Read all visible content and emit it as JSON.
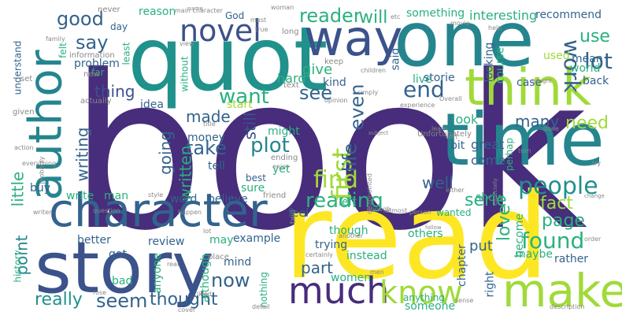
{
  "palette": {
    "purple": "#472d7b",
    "indigo": "#3b528b",
    "slate": "#33638d",
    "teal": "#25858e",
    "green": "#21918c",
    "sea": "#2ab07f",
    "lime": "#5ec962",
    "yellowgreen": "#a0da39",
    "yellow": "#fde725",
    "gray": "#888888"
  },
  "words": [
    {
      "text": "book",
      "color": "#472d7b"
    },
    {
      "text": "one",
      "color": "#25858e"
    },
    {
      "text": "quot",
      "color": "#21918c"
    },
    {
      "text": "read",
      "color": "#fde725"
    },
    {
      "text": "time",
      "color": "#25858e"
    },
    {
      "text": "story",
      "color": "#3b528b"
    },
    {
      "text": "character",
      "color": "#33638d"
    },
    {
      "text": "way",
      "color": "#3b528b"
    },
    {
      "text": "think",
      "color": "#a0da39"
    },
    {
      "text": "author",
      "color": "#25858e"
    },
    {
      "text": "make",
      "color": "#a0da39"
    },
    {
      "text": "much",
      "color": "#472d7b"
    },
    {
      "text": "novel",
      "color": "#3b528b"
    },
    {
      "text": "know",
      "color": "#a0da39"
    },
    {
      "text": "people",
      "color": "#21918c"
    },
    {
      "text": "reading",
      "color": "#2ab07f"
    },
    {
      "text": "found",
      "color": "#2ab07f"
    },
    {
      "text": "first",
      "color": "#a0da39"
    },
    {
      "text": "find",
      "color": "#a0da39"
    },
    {
      "text": "end",
      "color": "#33638d"
    },
    {
      "text": "even",
      "color": "#33638d"
    },
    {
      "text": "see",
      "color": "#33638d"
    },
    {
      "text": "say",
      "color": "#33638d"
    },
    {
      "text": "good",
      "color": "#33638d"
    },
    {
      "text": "reader",
      "color": "#2ab07f"
    },
    {
      "text": "will",
      "color": "#2ab07f"
    },
    {
      "text": "work",
      "color": "#33638d"
    },
    {
      "text": "lot",
      "color": "#33638d"
    },
    {
      "text": "use",
      "color": "#2ab07f"
    },
    {
      "text": "want",
      "color": "#2ab07f"
    },
    {
      "text": "life",
      "color": "#33638d"
    },
    {
      "text": "plot",
      "color": "#25858e"
    },
    {
      "text": "take",
      "color": "#33638d"
    },
    {
      "text": "seem",
      "color": "#33638d"
    },
    {
      "text": "thought",
      "color": "#33638d"
    },
    {
      "text": "now",
      "color": "#33638d"
    },
    {
      "text": "really",
      "color": "#21918c"
    },
    {
      "text": "page",
      "color": "#2ab07f"
    },
    {
      "text": "fact",
      "color": "#a0da39"
    },
    {
      "text": "love",
      "color": "#2ab07f"
    },
    {
      "text": "serie",
      "color": "#2ab07f"
    },
    {
      "text": "need",
      "color": "#a0da39"
    },
    {
      "text": "many",
      "color": "#33638d"
    },
    {
      "text": "well",
      "color": "#33638d"
    },
    {
      "text": "part",
      "color": "#33638d"
    },
    {
      "text": "made",
      "color": "#33638d"
    },
    {
      "text": "thing",
      "color": "#3b528b"
    },
    {
      "text": "still",
      "color": "#3b528b"
    },
    {
      "text": "going",
      "color": "#33638d"
    },
    {
      "text": "written",
      "color": "#2ab07f"
    },
    {
      "text": "writing",
      "color": "#33638d"
    },
    {
      "text": "little",
      "color": "#2ab07f"
    },
    {
      "text": "point",
      "color": "#25858e"
    },
    {
      "text": "give",
      "color": "#2ab07f"
    },
    {
      "text": "hard",
      "color": "#2ab07f"
    },
    {
      "text": "something",
      "color": "#2ab07f"
    },
    {
      "text": "interesting",
      "color": "#2ab07f"
    },
    {
      "text": "recommend",
      "color": "#33638d"
    },
    {
      "text": "problem",
      "color": "#33638d"
    },
    {
      "text": "looking",
      "color": "#33638d"
    },
    {
      "text": "course",
      "color": "#2ab07f"
    },
    {
      "text": "world",
      "color": "#2ab07f"
    },
    {
      "text": "back",
      "color": "#33638d"
    },
    {
      "text": "case",
      "color": "#33638d"
    },
    {
      "text": "mean",
      "color": "#33638d"
    },
    {
      "text": "used",
      "color": "#a0da39"
    },
    {
      "text": "live",
      "color": "#2ab07f"
    },
    {
      "text": "storie",
      "color": "#33638d"
    },
    {
      "text": "look",
      "color": "#2ab07f"
    },
    {
      "text": "great",
      "color": "#33638d"
    },
    {
      "text": "come",
      "color": "#33638d"
    },
    {
      "text": "bit",
      "color": "#33638d"
    },
    {
      "text": "perhap",
      "color": "#2ab07f"
    },
    {
      "text": "show",
      "color": "#2ab07f"
    },
    {
      "text": "become",
      "color": "#2ab07f"
    },
    {
      "text": "others",
      "color": "#2ab07f"
    },
    {
      "text": "chapter",
      "color": "#33638d"
    },
    {
      "text": "put",
      "color": "#33638d"
    },
    {
      "text": "maybe",
      "color": "#2ab07f"
    },
    {
      "text": "rather",
      "color": "#33638d"
    },
    {
      "text": "right",
      "color": "#33638d"
    },
    {
      "text": "instead",
      "color": "#2ab07f"
    },
    {
      "text": "trying",
      "color": "#33638d"
    },
    {
      "text": "though",
      "color": "#2ab07f"
    },
    {
      "text": "someone",
      "color": "#2ab07f"
    },
    {
      "text": "women",
      "color": "#2ab07f"
    },
    {
      "text": "anything",
      "color": "#2ab07f"
    },
    {
      "text": "example",
      "color": "#33638d"
    },
    {
      "text": "may",
      "color": "#2ab07f"
    },
    {
      "text": "mind",
      "color": "#33638d"
    },
    {
      "text": "although",
      "color": "#2ab07f"
    },
    {
      "text": "anyone",
      "color": "#2ab07f"
    },
    {
      "text": "review",
      "color": "#33638d"
    },
    {
      "text": "better",
      "color": "#33638d"
    },
    {
      "text": "got",
      "color": "#33638d"
    },
    {
      "text": "bad",
      "color": "#2ab07f"
    },
    {
      "text": "history",
      "color": "#2ab07f"
    },
    {
      "text": "buy",
      "color": "#33638d"
    },
    {
      "text": "write",
      "color": "#2ab07f"
    },
    {
      "text": "man",
      "color": "#2ab07f"
    },
    {
      "text": "word",
      "color": "#33638d"
    },
    {
      "text": "believe",
      "color": "#33638d"
    },
    {
      "text": "feel",
      "color": "#33638d"
    },
    {
      "text": "sure",
      "color": "#2ab07f"
    },
    {
      "text": "best",
      "color": "#33638d"
    },
    {
      "text": "tell",
      "color": "#33638d"
    },
    {
      "text": "money",
      "color": "#33638d"
    },
    {
      "text": "might",
      "color": "#2ab07f"
    },
    {
      "text": "yet",
      "color": "#2ab07f"
    },
    {
      "text": "idea",
      "color": "#33638d"
    },
    {
      "text": "reason",
      "color": "#2ab07f"
    },
    {
      "text": "day",
      "color": "#33638d"
    },
    {
      "text": "felt",
      "color": "#2ab07f"
    },
    {
      "text": "far",
      "color": "#2ab07f"
    },
    {
      "text": "least",
      "color": "#2ab07f"
    },
    {
      "text": "kind",
      "color": "#33638d"
    },
    {
      "text": "start",
      "color": "#a0da39"
    },
    {
      "text": "without",
      "color": "#2ab07f"
    },
    {
      "text": "understand",
      "color": "#33638d"
    },
    {
      "text": "God",
      "color": "#33638d"
    },
    {
      "text": "said",
      "color": "#33638d"
    },
    {
      "text": "left",
      "color": "#2ab07f"
    },
    {
      "text": "wanted",
      "color": "#2ab07f"
    },
    {
      "text": "never",
      "color": "#888888"
    },
    {
      "text": "main character",
      "color": "#888888"
    },
    {
      "text": "woman",
      "color": "#888888"
    },
    {
      "text": "etc",
      "color": "#888888"
    },
    {
      "text": "movie",
      "color": "#888888"
    },
    {
      "text": "help",
      "color": "#888888"
    },
    {
      "text": "must",
      "color": "#888888"
    },
    {
      "text": "true",
      "color": "#888888"
    },
    {
      "text": "long",
      "color": "#888888"
    },
    {
      "text": "information",
      "color": "#888888"
    },
    {
      "text": "family",
      "color": "#888888"
    },
    {
      "text": "new",
      "color": "#888888"
    },
    {
      "text": "given",
      "color": "#888888"
    },
    {
      "text": "set",
      "color": "#888888"
    },
    {
      "text": "actually",
      "color": "#888888"
    },
    {
      "text": "text",
      "color": "#888888"
    },
    {
      "text": "keep",
      "color": "#888888"
    },
    {
      "text": "children",
      "color": "#888888"
    },
    {
      "text": "bought",
      "color": "#888888"
    },
    {
      "text": "Overall",
      "color": "#888888"
    },
    {
      "text": "simply",
      "color": "#888888"
    },
    {
      "text": "experience",
      "color": "#888888"
    },
    {
      "text": "Unfortunately",
      "color": "#888888"
    },
    {
      "text": "title",
      "color": "#888888"
    },
    {
      "text": "opinion",
      "color": "#888888"
    },
    {
      "text": "subject",
      "color": "#888888"
    },
    {
      "text": "learn",
      "color": "#888888"
    },
    {
      "text": "sort",
      "color": "#888888"
    },
    {
      "text": "done",
      "color": "#888888"
    },
    {
      "text": "try",
      "color": "#888888"
    },
    {
      "text": "ending",
      "color": "#888888"
    },
    {
      "text": "everything",
      "color": "#888888"
    },
    {
      "text": "action",
      "color": "#888888"
    },
    {
      "text": "probably",
      "color": "#888888"
    },
    {
      "text": "enjoy",
      "color": "#888888"
    },
    {
      "text": "style",
      "color": "#888888"
    },
    {
      "text": "friend",
      "color": "#888888"
    },
    {
      "text": "disappointed",
      "color": "#888888"
    },
    {
      "text": "either",
      "color": "#888888"
    },
    {
      "text": "especially",
      "color": "#888888"
    },
    {
      "text": "turn",
      "color": "#888888"
    },
    {
      "text": "change",
      "color": "#888888"
    },
    {
      "text": "order",
      "color": "#888888"
    },
    {
      "text": "two",
      "color": "#888888"
    },
    {
      "text": "enough",
      "color": "#888888"
    },
    {
      "text": "almost",
      "color": "#888888"
    },
    {
      "text": "person",
      "color": "#888888"
    },
    {
      "text": "follow",
      "color": "#888888"
    },
    {
      "text": "writer",
      "color": "#888888"
    },
    {
      "text": "happen",
      "color": "#888888"
    },
    {
      "text": "lot",
      "color": "#888888"
    },
    {
      "text": "place",
      "color": "#888888"
    },
    {
      "text": "real",
      "color": "#888888"
    },
    {
      "text": "certainly",
      "color": "#888888"
    },
    {
      "text": "sense",
      "color": "#888888"
    },
    {
      "text": "another",
      "color": "#888888"
    },
    {
      "text": "nothing",
      "color": "#2ab07f"
    },
    {
      "text": "men",
      "color": "#888888"
    },
    {
      "text": "detail",
      "color": "#888888"
    },
    {
      "text": "cover",
      "color": "#888888"
    },
    {
      "text": "rose",
      "color": "#888888"
    },
    {
      "text": "liked",
      "color": "#888888"
    },
    {
      "text": "description",
      "color": "#888888"
    },
    {
      "text": "question",
      "color": "#888888"
    },
    {
      "text": "view",
      "color": "#888888"
    },
    {
      "text": "name",
      "color": "#888888"
    }
  ]
}
